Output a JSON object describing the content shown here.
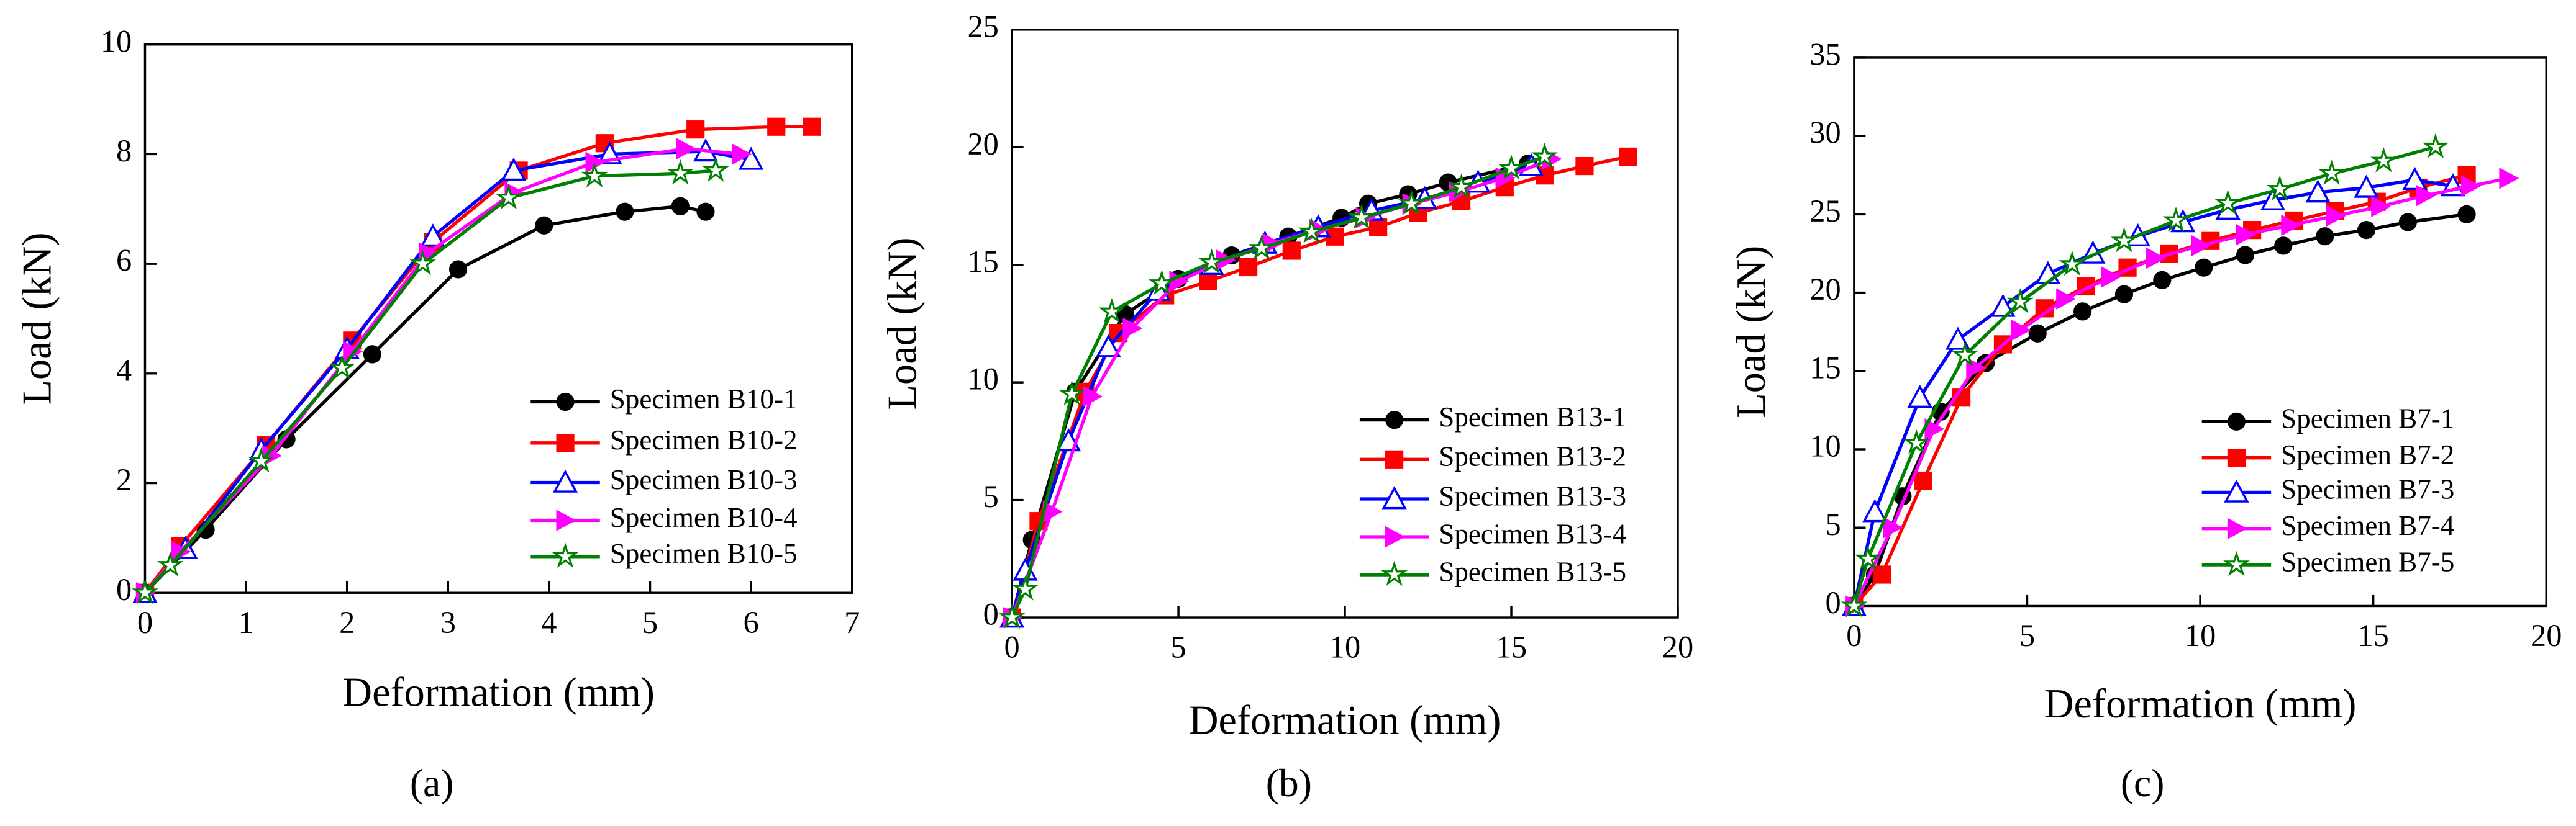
{
  "chart_data": [
    {
      "type": "line",
      "label": "(a)",
      "xlabel": "Deformation (mm)",
      "ylabel": "Load (kN)",
      "xlim": [
        0,
        7
      ],
      "ylim": [
        0,
        10
      ],
      "xticks": [
        0,
        1,
        2,
        3,
        4,
        5,
        6,
        7
      ],
      "yticks": [
        0,
        2,
        4,
        6,
        8,
        10
      ],
      "series": [
        {
          "name": "Specimen B10-1",
          "color": "#000000",
          "marker": "circle",
          "x": [
            0,
            0.6,
            1.4,
            2.25,
            3.1,
            3.95,
            4.75,
            5.3,
            5.55
          ],
          "values": [
            0,
            1.15,
            2.8,
            4.35,
            5.9,
            6.7,
            6.95,
            7.05,
            6.95
          ]
        },
        {
          "name": "Specimen B10-2",
          "color": "#ff0000",
          "marker": "square",
          "x": [
            0,
            0.35,
            1.2,
            2.05,
            2.85,
            3.7,
            4.55,
            5.45,
            6.25,
            6.6
          ],
          "values": [
            0,
            0.85,
            2.7,
            4.6,
            6.4,
            7.7,
            8.2,
            8.45,
            8.5,
            8.5
          ]
        },
        {
          "name": "Specimen B10-3",
          "color": "#0000ff",
          "marker": "triangle",
          "x": [
            0,
            0.4,
            1.15,
            2,
            2.85,
            3.65,
            4.6,
            5.55,
            6.0
          ],
          "values": [
            0,
            0.8,
            2.6,
            4.45,
            6.5,
            7.7,
            8.0,
            8.05,
            7.9
          ]
        },
        {
          "name": "Specimen B10-4",
          "color": "#ff00ff",
          "marker": "right",
          "x": [
            0,
            0.35,
            1.25,
            2.05,
            2.8,
            3.65,
            4.45,
            5.35,
            5.9
          ],
          "values": [
            0,
            0.75,
            2.5,
            4.4,
            6.2,
            7.3,
            7.85,
            8.1,
            8.0
          ]
        },
        {
          "name": "Specimen B10-5",
          "color": "#008000",
          "marker": "star",
          "x": [
            0,
            0.25,
            1.15,
            1.95,
            2.75,
            3.6,
            4.45,
            5.3,
            5.65
          ],
          "values": [
            0,
            0.5,
            2.4,
            4.1,
            6.0,
            7.2,
            7.6,
            7.65,
            7.7
          ]
        }
      ]
    },
    {
      "type": "line",
      "label": "(b)",
      "xlabel": "Deformation (mm)",
      "ylabel": "Load (kN)",
      "xlim": [
        0,
        20
      ],
      "ylim": [
        0,
        25
      ],
      "xticks": [
        0,
        5,
        10,
        15,
        20
      ],
      "yticks": [
        0,
        5,
        10,
        15,
        20,
        25
      ],
      "series": [
        {
          "name": "Specimen B13-1",
          "color": "#000000",
          "marker": "circle",
          "x": [
            0,
            0.6,
            1.9,
            3.4,
            5,
            6.6,
            8.3,
            9.9,
            10.7,
            11.9,
            13.1,
            15.5
          ],
          "values": [
            0,
            3.3,
            9.6,
            12.9,
            14.4,
            15.4,
            16.2,
            17.0,
            17.6,
            18.0,
            18.5,
            19.3
          ]
        },
        {
          "name": "Specimen B13-2",
          "color": "#ff0000",
          "marker": "square",
          "x": [
            0,
            0.8,
            2.2,
            3.2,
            4.6,
            5.9,
            7.1,
            8.4,
            9.7,
            11,
            12.2,
            13.5,
            14.8,
            16,
            17.2,
            18.5
          ],
          "values": [
            0,
            4.1,
            9.6,
            12.1,
            13.7,
            14.3,
            14.9,
            15.6,
            16.2,
            16.6,
            17.2,
            17.7,
            18.3,
            18.8,
            19.2,
            19.6
          ]
        },
        {
          "name": "Specimen B13-3",
          "color": "#0000ff",
          "marker": "triangle",
          "x": [
            0,
            0.4,
            1.7,
            2.9,
            4.4,
            6,
            7.6,
            9.2,
            10.8,
            12.4,
            14,
            15.6
          ],
          "values": [
            0,
            2,
            7.5,
            11.5,
            13.9,
            15,
            15.9,
            16.6,
            17.3,
            17.8,
            18.5,
            19.2
          ]
        },
        {
          "name": "Specimen B13-4",
          "color": "#ff00ff",
          "marker": "right",
          "x": [
            0,
            1.2,
            2.4,
            3.6,
            5,
            6.4,
            7.8,
            9.2,
            10.6,
            12,
            13.4,
            14.8,
            16.2
          ],
          "values": [
            0,
            4.5,
            9.4,
            12.3,
            14.3,
            15.2,
            15.9,
            16.5,
            17.0,
            17.6,
            18.1,
            18.7,
            19.5
          ]
        },
        {
          "name": "Specimen B13-5",
          "color": "#008000",
          "marker": "star",
          "x": [
            0,
            0.4,
            1.8,
            3.0,
            4.5,
            6,
            7.5,
            9,
            10.5,
            12,
            13.5,
            15,
            16
          ],
          "values": [
            0,
            1.2,
            9.5,
            13,
            14.2,
            15.1,
            15.7,
            16.4,
            17.0,
            17.6,
            18.3,
            19.1,
            19.6
          ]
        }
      ]
    },
    {
      "type": "line",
      "label": "(c)",
      "xlabel": "Deformation (mm)",
      "ylabel": "Load (kN)",
      "xlim": [
        0,
        20
      ],
      "ylim": [
        0,
        35
      ],
      "xticks": [
        0,
        5,
        10,
        15,
        20
      ],
      "yticks": [
        0,
        5,
        10,
        15,
        20,
        25,
        30,
        35
      ],
      "series": [
        {
          "name": "Specimen B7-1",
          "color": "#000000",
          "marker": "circle",
          "x": [
            0,
            0.6,
            1.4,
            2.5,
            3.8,
            5.3,
            6.6,
            7.8,
            8.9,
            10.1,
            11.3,
            12.4,
            13.6,
            14.8,
            16,
            17.7
          ],
          "values": [
            0,
            2,
            7,
            12.4,
            15.5,
            17.4,
            18.8,
            19.9,
            20.8,
            21.6,
            22.4,
            23,
            23.6,
            24,
            24.5,
            25
          ]
        },
        {
          "name": "Specimen B7-2",
          "color": "#ff0000",
          "marker": "square",
          "x": [
            0,
            0.8,
            2,
            3.1,
            4.3,
            5.5,
            6.7,
            7.9,
            9.1,
            10.3,
            11.5,
            12.7,
            13.9,
            15.1,
            16.3,
            17.7
          ],
          "values": [
            0,
            2,
            8,
            13.3,
            16.7,
            19,
            20.4,
            21.6,
            22.5,
            23.3,
            24,
            24.6,
            25.2,
            25.8,
            26.7,
            27.5
          ]
        },
        {
          "name": "Specimen B7-3",
          "color": "#0000ff",
          "marker": "triangle",
          "x": [
            0,
            0.6,
            1.9,
            3,
            4.3,
            5.6,
            6.9,
            8.2,
            9.5,
            10.8,
            12.1,
            13.4,
            14.8,
            16.2,
            17.3
          ],
          "values": [
            0,
            6,
            13.3,
            17,
            19.1,
            21.2,
            22.5,
            23.6,
            24.5,
            25.3,
            25.9,
            26.4,
            26.7,
            27.2,
            26.8
          ]
        },
        {
          "name": "Specimen B7-4",
          "color": "#ff00ff",
          "marker": "right",
          "x": [
            0,
            1.1,
            2.3,
            3.5,
            4.8,
            6.1,
            7.4,
            8.7,
            10,
            11.3,
            12.6,
            13.9,
            15.2,
            16.5,
            17.8,
            18.9
          ],
          "values": [
            0,
            5,
            11.3,
            15.2,
            17.6,
            19.6,
            21,
            22.2,
            23,
            23.7,
            24.3,
            24.9,
            25.5,
            26.2,
            26.8,
            27.3
          ]
        },
        {
          "name": "Specimen B7-5",
          "color": "#008000",
          "marker": "star",
          "x": [
            0,
            0.4,
            1.8,
            3.2,
            4.8,
            6.3,
            7.8,
            9.3,
            10.8,
            12.3,
            13.8,
            15.3,
            16.8
          ],
          "values": [
            0,
            3,
            10.4,
            16,
            19.4,
            21.8,
            23.3,
            24.6,
            25.7,
            26.6,
            27.6,
            28.4,
            29.3
          ]
        }
      ]
    }
  ]
}
